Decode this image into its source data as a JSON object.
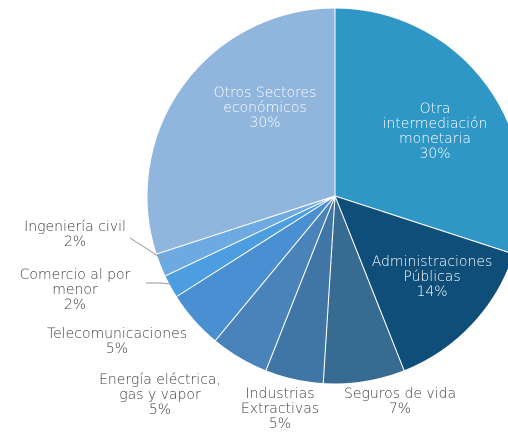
{
  "chart_data": {
    "type": "pie",
    "categories": [
      "Otra intermediación monetaria",
      "Administraciones Públicas",
      "Seguros de vida",
      "Industrias Extractivas",
      "Energía eléctrica, gas y vapor",
      "Telecomunicaciones",
      "Comercio al por menor",
      "Ingeniería civil",
      "Otros Sectores económicos"
    ],
    "values": [
      30,
      14,
      7,
      5,
      5,
      5,
      2,
      2,
      30
    ],
    "value_labels": [
      "30%",
      "14%",
      "7%",
      "5%",
      "5%",
      "5%",
      "2%",
      "2%",
      "30%"
    ],
    "colors": [
      "#2f97c5",
      "#0f4e78",
      "#386b92",
      "#3f76a6",
      "#4a83ba",
      "#4a8fd1",
      "#4c9ee0",
      "#6eaae2",
      "#90b6de"
    ]
  }
}
